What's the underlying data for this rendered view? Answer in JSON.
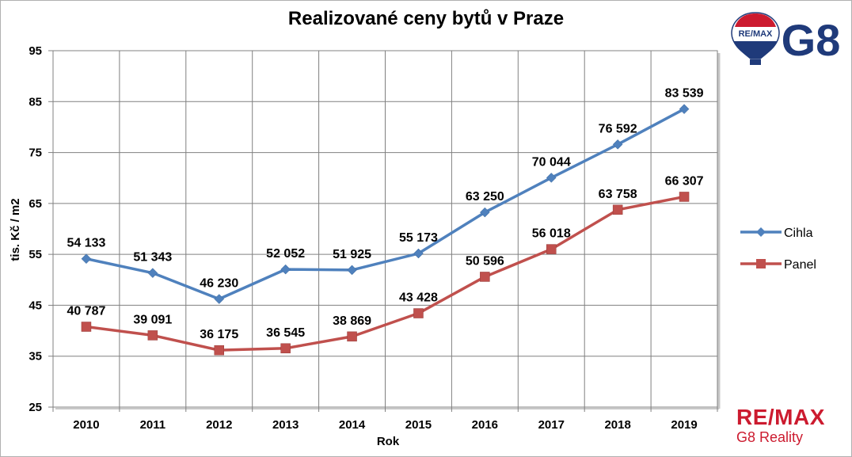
{
  "chart_data": {
    "type": "line",
    "title": "Realizované ceny bytů v Praze",
    "xlabel": "Rok",
    "ylabel": "tis. Kč / m2",
    "ylim": [
      25,
      95
    ],
    "yticks": [
      25,
      35,
      45,
      55,
      65,
      75,
      85,
      95
    ],
    "grid": true,
    "legend_position": "right",
    "categories": [
      "2010",
      "2011",
      "2012",
      "2013",
      "2014",
      "2015",
      "2016",
      "2017",
      "2018",
      "2019"
    ],
    "series": [
      {
        "name": "Cihla",
        "color": "#4f81bd",
        "marker": "diamond",
        "values": [
          54.133,
          51.343,
          46.23,
          52.052,
          51.925,
          55.173,
          63.25,
          70.044,
          76.592,
          83.539
        ],
        "labels": [
          "54 133",
          "51 343",
          "46 230",
          "52 052",
          "51 925",
          "55 173",
          "63 250",
          "70 044",
          "76 592",
          "83 539"
        ]
      },
      {
        "name": "Panel",
        "color": "#c0504d",
        "marker": "square",
        "values": [
          40.787,
          39.091,
          36.175,
          36.545,
          38.869,
          43.428,
          50.596,
          56.018,
          63.758,
          66.307
        ],
        "labels": [
          "40 787",
          "39 091",
          "36 175",
          "36 545",
          "38 869",
          "43 428",
          "50 596",
          "56 018",
          "63 758",
          "66 307"
        ]
      }
    ]
  },
  "logo": {
    "balloon_text": "RE/MAX",
    "mark": "G8"
  },
  "brand": {
    "name": "RE/MAX",
    "subtitle": "G8 Reality"
  }
}
